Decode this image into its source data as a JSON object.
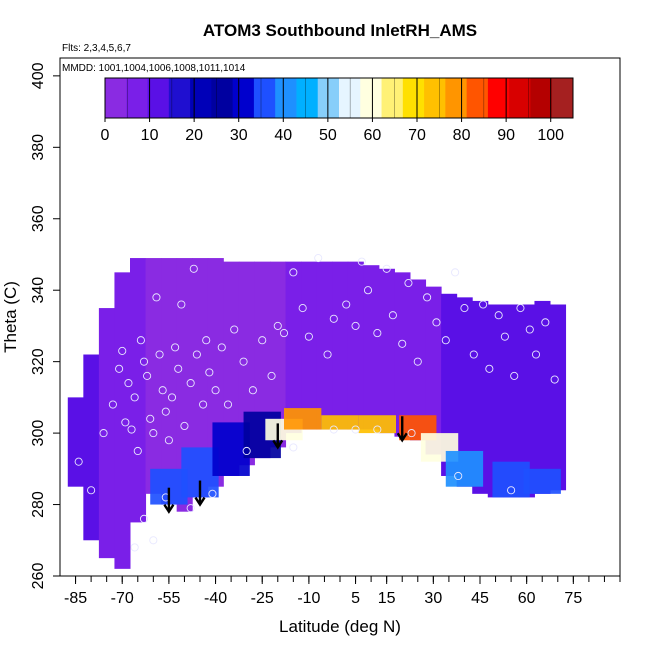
{
  "chart_data": {
    "type": "heatmap",
    "title": "ATOM3 Southbound InletRH_AMS",
    "annotations": [
      "Flts: 2,3,4,5,6,7",
      "MMDD: 1001,1004,1006,1008,1011,1014"
    ],
    "xlabel": "Latitude (deg N)",
    "ylabel": "Theta (C)",
    "xlim": [
      -90,
      90
    ],
    "ylim": [
      260,
      405
    ],
    "x_ticks": [
      -85,
      -70,
      -55,
      -40,
      -25,
      -10,
      5,
      15,
      30,
      45,
      60,
      75
    ],
    "y_ticks": [
      260,
      280,
      300,
      320,
      340,
      360,
      380,
      400
    ],
    "colorbar": {
      "ticks": [
        0,
        10,
        20,
        30,
        40,
        50,
        60,
        70,
        80,
        90,
        100
      ],
      "range": [
        0,
        105
      ],
      "colors": [
        "#8a2be2",
        "#7a1fe8",
        "#5a10e6",
        "#1f0fd0",
        "#0000b8",
        "#0000a0",
        "#0000cd",
        "#1e50ff",
        "#1e90ff",
        "#00b0ff",
        "#87cefa",
        "#e6f5ff",
        "#ffffe0",
        "#fff176",
        "#ffe000",
        "#ffc000",
        "#ff9500",
        "#ff5500",
        "#ff0000",
        "#d80000",
        "#b40000",
        "#a52020"
      ]
    },
    "field": [
      {
        "lat": -85,
        "theta_min": 285,
        "theta_max": 310,
        "rh": 12
      },
      {
        "lat": -80,
        "theta_min": 270,
        "theta_max": 322,
        "rh": 10
      },
      {
        "lat": -75,
        "theta_min": 265,
        "theta_max": 335,
        "rh": 8
      },
      {
        "lat": -70,
        "theta_min": 262,
        "theta_max": 345,
        "rh": 8
      },
      {
        "lat": -65,
        "theta_min": 275,
        "theta_max": 349,
        "rh": 6
      },
      {
        "lat": -60,
        "theta_min": 283,
        "theta_max": 349,
        "rh": 4
      },
      {
        "lat": -55,
        "theta_min": 280,
        "theta_max": 349,
        "rh": 3
      },
      {
        "lat": -50,
        "theta_min": 278,
        "theta_max": 349,
        "rh": 3
      },
      {
        "lat": -45,
        "theta_min": 282,
        "theta_max": 349,
        "rh": 3
      },
      {
        "lat": -40,
        "theta_min": 285,
        "theta_max": 349,
        "rh": 3
      },
      {
        "lat": -35,
        "theta_min": 288,
        "theta_max": 348,
        "rh": 3
      },
      {
        "lat": -30,
        "theta_min": 291,
        "theta_max": 348,
        "rh": 3
      },
      {
        "lat": -25,
        "theta_min": 293,
        "theta_max": 348,
        "rh": 4
      },
      {
        "lat": -20,
        "theta_min": 296,
        "theta_max": 348,
        "rh": 4
      },
      {
        "lat": -15,
        "theta_min": 300,
        "theta_max": 348,
        "rh": 5
      },
      {
        "lat": -10,
        "theta_min": 301,
        "theta_max": 348,
        "rh": 6
      },
      {
        "lat": -5,
        "theta_min": 301,
        "theta_max": 348,
        "rh": 5
      },
      {
        "lat": 0,
        "theta_min": 301,
        "theta_max": 348,
        "rh": 5
      },
      {
        "lat": 5,
        "theta_min": 301,
        "theta_max": 348,
        "rh": 5
      },
      {
        "lat": 10,
        "theta_min": 301,
        "theta_max": 347,
        "rh": 6
      },
      {
        "lat": 15,
        "theta_min": 300,
        "theta_max": 346,
        "rh": 8
      },
      {
        "lat": 20,
        "theta_min": 299,
        "theta_max": 345,
        "rh": 8
      },
      {
        "lat": 25,
        "theta_min": 298,
        "theta_max": 343,
        "rh": 8
      },
      {
        "lat": 30,
        "theta_min": 294,
        "theta_max": 341,
        "rh": 8
      },
      {
        "lat": 35,
        "theta_min": 288,
        "theta_max": 339,
        "rh": 10
      },
      {
        "lat": 40,
        "theta_min": 285,
        "theta_max": 338,
        "rh": 10
      },
      {
        "lat": 45,
        "theta_min": 283,
        "theta_max": 337,
        "rh": 12
      },
      {
        "lat": 50,
        "theta_min": 282,
        "theta_max": 336,
        "rh": 14
      },
      {
        "lat": 55,
        "theta_min": 282,
        "theta_max": 336,
        "rh": 14
      },
      {
        "lat": 60,
        "theta_min": 282,
        "theta_max": 336,
        "rh": 12
      },
      {
        "lat": 65,
        "theta_min": 283,
        "theta_max": 337,
        "rh": 10
      },
      {
        "lat": 70,
        "theta_min": 284,
        "theta_max": 336,
        "rh": 10
      }
    ],
    "moist_layer": [
      {
        "lat": -55,
        "bottom": 280,
        "top": 290,
        "rh": 38
      },
      {
        "lat": -45,
        "bottom": 282,
        "top": 296,
        "rh": 35
      },
      {
        "lat": -35,
        "bottom": 288,
        "top": 303,
        "rh": 30
      },
      {
        "lat": -25,
        "bottom": 293,
        "top": 306,
        "rh": 28
      },
      {
        "lat": -18,
        "bottom": 298,
        "top": 304,
        "rh": 60
      },
      {
        "lat": -12,
        "bottom": 301,
        "top": 307,
        "rh": 78
      },
      {
        "lat": 0,
        "bottom": 301,
        "top": 305,
        "rh": 75
      },
      {
        "lat": 12,
        "bottom": 300,
        "top": 305,
        "rh": 72
      },
      {
        "lat": 25,
        "bottom": 298,
        "top": 305,
        "rh": 85
      },
      {
        "lat": 32,
        "bottom": 292,
        "top": 300,
        "rh": 62
      },
      {
        "lat": 40,
        "bottom": 285,
        "top": 295,
        "rh": 40
      },
      {
        "lat": 55,
        "bottom": 282,
        "top": 292,
        "rh": 38
      },
      {
        "lat": 65,
        "bottom": 283,
        "top": 290,
        "rh": 35
      }
    ],
    "observations": [
      [
        -84,
        292
      ],
      [
        -80,
        284
      ],
      [
        -76,
        300
      ],
      [
        -73,
        308
      ],
      [
        -71,
        318
      ],
      [
        -70,
        323
      ],
      [
        -69,
        303
      ],
      [
        -68,
        314
      ],
      [
        -67,
        301
      ],
      [
        -66,
        310
      ],
      [
        -65,
        295
      ],
      [
        -64,
        326
      ],
      [
        -63,
        320
      ],
      [
        -62,
        316
      ],
      [
        -61,
        304
      ],
      [
        -60,
        300
      ],
      [
        -59,
        338
      ],
      [
        -58,
        322
      ],
      [
        -57,
        312
      ],
      [
        -56,
        306
      ],
      [
        -55,
        298
      ],
      [
        -54,
        310
      ],
      [
        -53,
        324
      ],
      [
        -52,
        318
      ],
      [
        -51,
        336
      ],
      [
        -50,
        302
      ],
      [
        -48,
        314
      ],
      [
        -47,
        346
      ],
      [
        -46,
        322
      ],
      [
        -44,
        308
      ],
      [
        -43,
        326
      ],
      [
        -42,
        317
      ],
      [
        -40,
        312
      ],
      [
        -38,
        324
      ],
      [
        -36,
        308
      ],
      [
        -34,
        329
      ],
      [
        -31,
        320
      ],
      [
        -28,
        312
      ],
      [
        -25,
        326
      ],
      [
        -22,
        316
      ],
      [
        -20,
        330
      ],
      [
        -18,
        328
      ],
      [
        -15,
        345
      ],
      [
        -12,
        335
      ],
      [
        -10,
        327
      ],
      [
        -7,
        349
      ],
      [
        -4,
        322
      ],
      [
        -2,
        332
      ],
      [
        2,
        336
      ],
      [
        5,
        330
      ],
      [
        7,
        348
      ],
      [
        9,
        340
      ],
      [
        12,
        328
      ],
      [
        15,
        346
      ],
      [
        17,
        333
      ],
      [
        20,
        325
      ],
      [
        22,
        342
      ],
      [
        25,
        320
      ],
      [
        28,
        338
      ],
      [
        31,
        331
      ],
      [
        34,
        326
      ],
      [
        37,
        345
      ],
      [
        40,
        335
      ],
      [
        43,
        322
      ],
      [
        46,
        336
      ],
      [
        48,
        318
      ],
      [
        51,
        333
      ],
      [
        53,
        327
      ],
      [
        56,
        316
      ],
      [
        58,
        335
      ],
      [
        61,
        329
      ],
      [
        63,
        322
      ],
      [
        66,
        331
      ],
      [
        69,
        315
      ],
      [
        12,
        301
      ],
      [
        5,
        301
      ],
      [
        -2,
        301
      ],
      [
        23,
        300
      ],
      [
        -56,
        282
      ],
      [
        -48,
        279
      ],
      [
        -41,
        283
      ],
      [
        -15,
        296
      ],
      [
        -30,
        295
      ],
      [
        55,
        284
      ],
      [
        38,
        288
      ],
      [
        -63,
        276
      ],
      [
        -60,
        270
      ],
      [
        -66,
        268
      ]
    ],
    "arrows": [
      {
        "lat": -55,
        "theta": 278
      },
      {
        "lat": -45,
        "theta": 280
      },
      {
        "lat": -20,
        "theta": 296
      },
      {
        "lat": 20,
        "theta": 298
      }
    ]
  }
}
